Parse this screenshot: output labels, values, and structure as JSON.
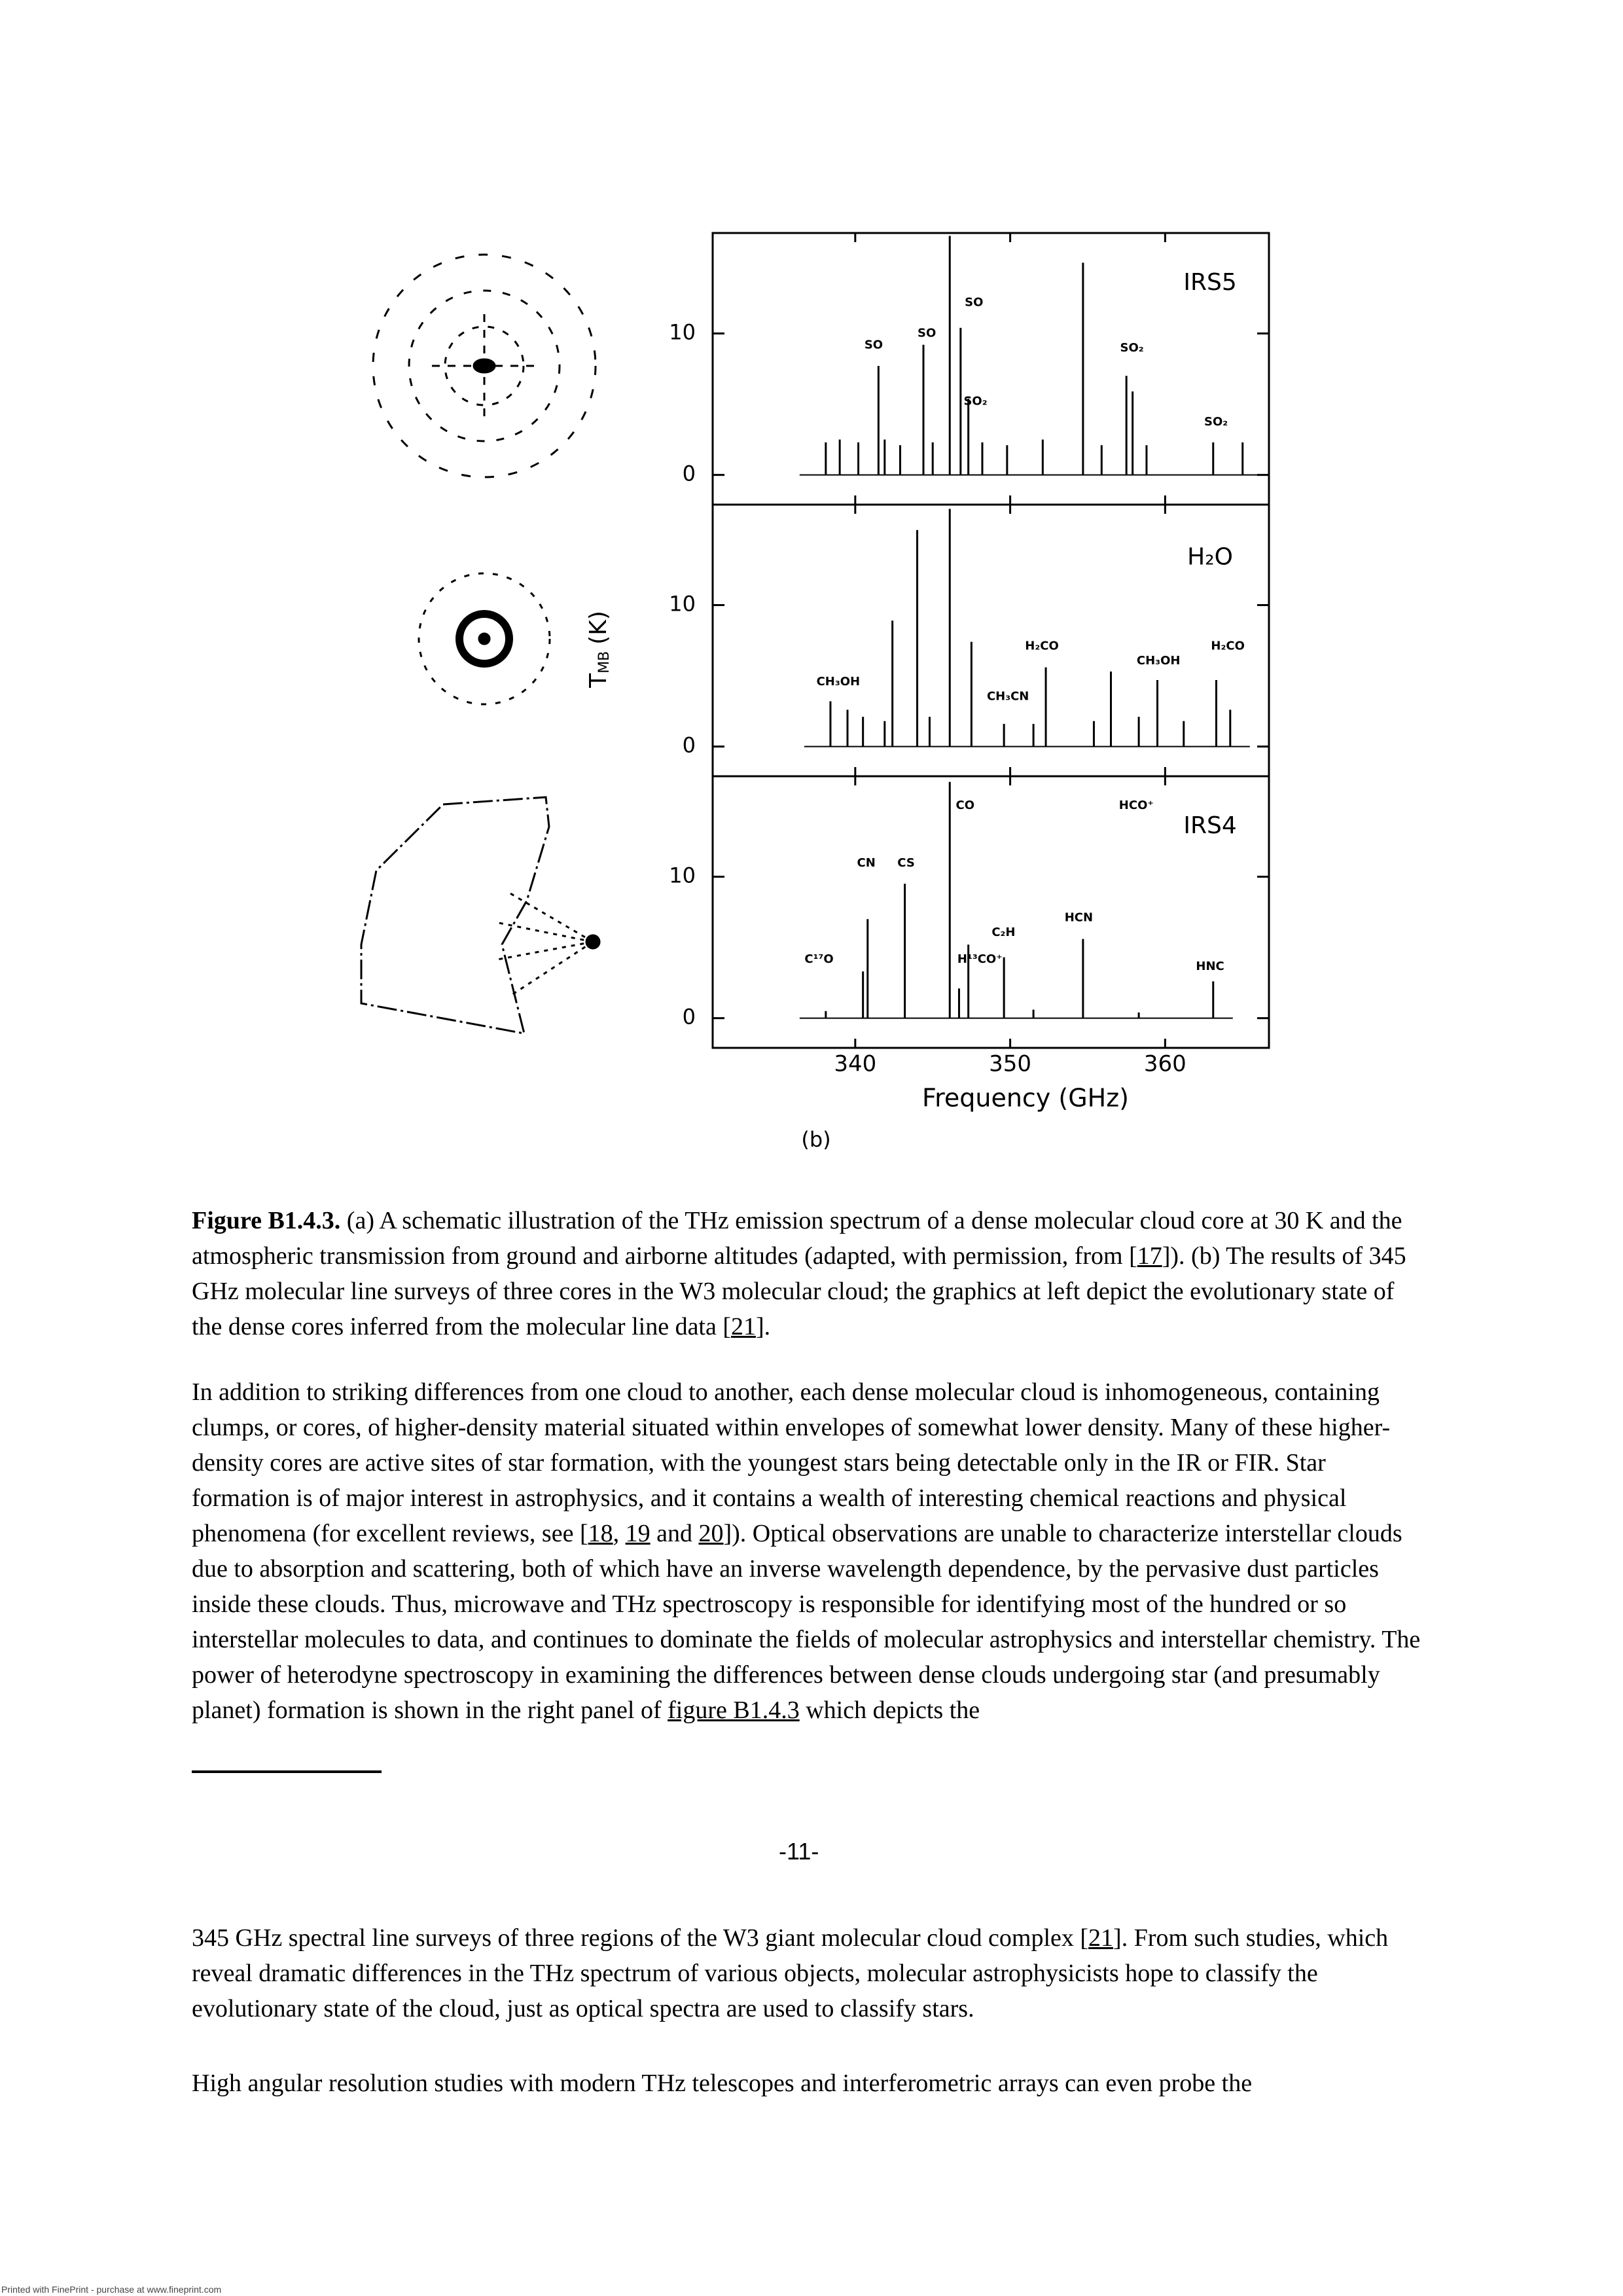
{
  "chart_data": {
    "type": "spectrum",
    "panel_label": "(b)",
    "xlabel": "Frequency (GHz)",
    "ylabel": "T",
    "ylabel_subscript": "MB",
    "ylabel_unit": "(K)",
    "xlim": [
      330.8,
      366.7
    ],
    "xticks": [
      340,
      350,
      360
    ],
    "ylim": [
      -2.1,
      17.1
    ],
    "yticks": [
      0,
      10
    ],
    "color": "#000000",
    "panels": [
      {
        "name": "IRS5",
        "x": [
          338.1,
          339.0,
          340.2,
          341.5,
          341.9,
          342.9,
          344.4,
          345.0,
          346.1,
          346.8,
          347.3,
          348.2,
          349.8,
          352.1,
          354.7,
          355.9,
          357.5,
          357.9,
          358.8,
          363.1,
          365.0
        ],
        "values": [
          2.3,
          2.5,
          2.3,
          7.7,
          2.5,
          2.1,
          9.2,
          2.3,
          16.9,
          10.4,
          5.4,
          2.3,
          2.1,
          2.5,
          15,
          2.1,
          7,
          5.9,
          2.1,
          2.3,
          2.3
        ],
        "labels": [
          "SO",
          "SO",
          "SO",
          "SO₂",
          "SO₂",
          "SO₂"
        ]
      },
      {
        "name": "H₂O",
        "x": [
          338.4,
          339.5,
          340.5,
          341.9,
          342.4,
          344.0,
          344.8,
          346.1,
          347.5,
          349.6,
          351.5,
          352.3,
          355.4,
          356.5,
          358.3,
          359.5,
          361.2,
          363.3,
          364.2
        ],
        "values": [
          3.2,
          2.6,
          2.1,
          1.8,
          8.9,
          15.3,
          2.1,
          16.8,
          7.4,
          1.6,
          1.6,
          5.6,
          1.8,
          5.3,
          2.1,
          4.7,
          1.8,
          4.7,
          2.6
        ],
        "labels": [
          "CH₃OH",
          "H₂CO",
          "CH₃CN",
          "CH₃OH",
          "H₂CO"
        ]
      },
      {
        "name": "IRS4",
        "x": [
          338.1,
          340.5,
          340.8,
          343.2,
          346.1,
          346.7,
          347.3,
          349.6,
          351.5,
          354.7,
          358.3,
          363.1
        ],
        "values": [
          0.5,
          3.3,
          7.0,
          9.5,
          16.7,
          2.1,
          5.2,
          4.3,
          0.6,
          5.6,
          0.4,
          2.6
        ],
        "labels": [
          "C¹⁷O",
          "CN",
          "CS",
          "CO",
          "H¹³CO⁺",
          "C₂H",
          "HCN",
          "HCO⁺",
          "HNC"
        ]
      }
    ]
  },
  "caption": {
    "label": "Figure B1.4.3.",
    "runs": [
      {
        "text": " (a) A schematic illustration of the THz emission spectrum of a dense molecular cloud core at 30 K and the atmospheric transmission from ground and airborne altitudes (adapted, with permission, from ["
      },
      {
        "link": "17"
      },
      {
        "text": "]). (b) The results of 345 GHz molecular line surveys of three cores in the W3 molecular cloud; the graphics at left depict the evolutionary state of the dense cores inferred from the molecular line data ["
      },
      {
        "link": "21"
      },
      {
        "text": "]."
      }
    ]
  },
  "body": [
    {
      "runs": [
        {
          "text": "In addition to striking differences from one cloud to another, each dense molecular cloud is inhomogeneous, containing clumps, or cores, of higher-density material situated within envelopes of somewhat lower density. Many of these higher-density cores are active sites of star formation, with the youngest stars being detectable only in the IR or FIR. Star formation is of major interest in astrophysics, and it contains a wealth of interesting chemical reactions and physical phenomena (for excellent reviews, see ["
        },
        {
          "link": "18"
        },
        {
          "text": ", "
        },
        {
          "link": "19"
        },
        {
          "text": " and "
        },
        {
          "link": "20"
        },
        {
          "text": "]). Optical observations are unable to characterize interstellar clouds due to absorption and scattering, both of which have an inverse wavelength dependence, by the pervasive dust particles inside these clouds. Thus, microwave and THz spectroscopy is responsible for identifying most of the hundred or so interstellar molecules to data, and continues to dominate the fields of molecular astrophysics and interstellar chemistry. The power of heterodyne spectroscopy in examining the differences between dense clouds undergoing star (and presumably planet) formation is shown in the right panel of "
        },
        {
          "link": "figure B1.4.3"
        },
        {
          "text": " which depicts the"
        }
      ]
    },
    {
      "runs": [
        {
          "text": "345 GHz spectral line surveys of three regions of the W3 giant molecular cloud complex ["
        },
        {
          "link": "21"
        },
        {
          "text": "]. From such studies, which reveal dramatic differences in the THz spectrum of various objects, molecular astrophysicists hope to classify the evolutionary state of the cloud, just as optical spectra are used to classify stars."
        }
      ]
    },
    {
      "runs": [
        {
          "text": "High angular resolution studies with modern THz telescopes and interferometric arrays can even probe the"
        }
      ]
    }
  ],
  "page_number": "-11-",
  "footer": "Printed with FinePrint - purchase at www.fineprint.com"
}
